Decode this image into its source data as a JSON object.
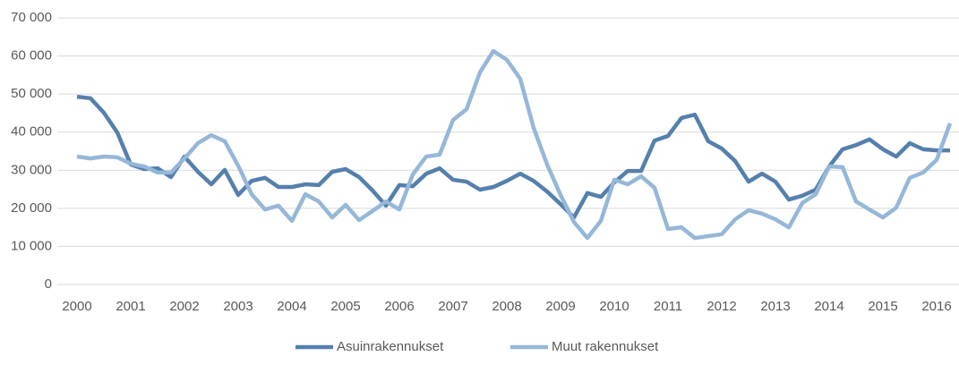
{
  "chart_data": {
    "type": "line",
    "categories": [
      "2000",
      null,
      null,
      null,
      "2001",
      null,
      null,
      null,
      "2002",
      null,
      null,
      null,
      "2003",
      null,
      null,
      null,
      "2004",
      null,
      null,
      null,
      "2005",
      null,
      null,
      null,
      "2006",
      null,
      null,
      null,
      "2007",
      null,
      null,
      null,
      "2008",
      null,
      null,
      null,
      "2009",
      null,
      null,
      null,
      "2010",
      null,
      null,
      null,
      "2011",
      null,
      null,
      null,
      "2012",
      null,
      null,
      null,
      "2013",
      null,
      null,
      null,
      "2014",
      null,
      null,
      null,
      "2015",
      null,
      null,
      null,
      "2016",
      null
    ],
    "series": [
      {
        "name": "Asuinrakennukset",
        "color": "#5580ad",
        "values": [
          49300,
          48900,
          45100,
          39900,
          31500,
          30300,
          30500,
          28200,
          33600,
          29600,
          26300,
          30100,
          23500,
          27200,
          28000,
          25600,
          25600,
          26300,
          26100,
          29600,
          30300,
          28200,
          24700,
          20700,
          26100,
          25800,
          29100,
          30500,
          27500,
          27000,
          24900,
          25600,
          27200,
          29100,
          27200,
          24400,
          21100,
          17600,
          24000,
          23000,
          26800,
          29800,
          29800,
          37800,
          39000,
          43700,
          44600,
          37600,
          35700,
          32400,
          27000,
          29100,
          27000,
          22300,
          23300,
          24900,
          31000,
          35500,
          36600,
          38100,
          35500,
          33600,
          37100,
          35500,
          35200,
          35200
        ]
      },
      {
        "name": "Muut rakennukset",
        "color": "#95b7d8",
        "values": [
          33600,
          33100,
          33600,
          33400,
          31700,
          31000,
          29400,
          29400,
          33100,
          37100,
          39200,
          37600,
          31200,
          23700,
          19700,
          20700,
          16700,
          23700,
          21800,
          17600,
          20900,
          16900,
          19300,
          21800,
          19700,
          28900,
          33600,
          34100,
          43200,
          46000,
          55700,
          61300,
          59000,
          54000,
          41100,
          31500,
          23500,
          16400,
          12200,
          16700,
          27500,
          26300,
          28400,
          25400,
          14600,
          15000,
          12200,
          12700,
          13200,
          17100,
          19500,
          18600,
          17100,
          15000,
          21400,
          23700,
          31000,
          30800,
          21800,
          19700,
          17600,
          20200,
          28000,
          29400,
          32700,
          42300
        ]
      }
    ],
    "ylim": [
      0,
      70000
    ],
    "yticks": [
      0,
      {
        "value": 10000,
        "label": "10 000"
      },
      {
        "value": 20000,
        "label": "20 000"
      },
      {
        "value": 30000,
        "label": "30 000"
      },
      {
        "value": 40000,
        "label": "40 000"
      },
      {
        "value": 50000,
        "label": "50 000"
      },
      {
        "value": 60000,
        "label": "60 000"
      },
      {
        "value": 70000,
        "label": "70 000"
      }
    ],
    "grid": true,
    "legend": "bottom"
  }
}
